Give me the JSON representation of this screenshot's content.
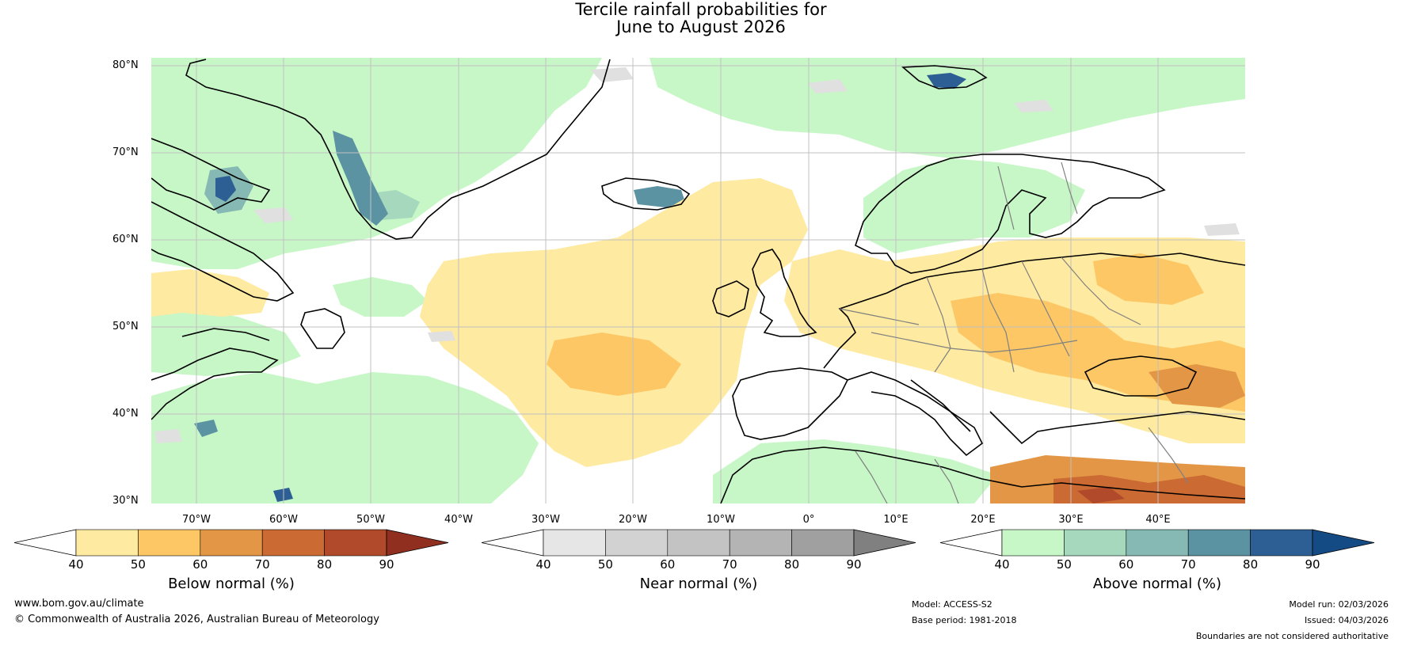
{
  "title_line1": "Tercile rainfall probabilities for",
  "title_line2": "June to August 2026",
  "lat_labels": [
    "80°N",
    "70°N",
    "60°N",
    "50°N",
    "40°N",
    "30°N"
  ],
  "lon_labels": [
    "70°W",
    "60°W",
    "50°W",
    "40°W",
    "30°W",
    "20°W",
    "10°W",
    "0°",
    "10°E",
    "20°E",
    "30°E",
    "40°E"
  ],
  "colorbars": [
    {
      "title": "Below normal (%)",
      "ticks": [
        "40",
        "50",
        "60",
        "70",
        "80",
        "90"
      ],
      "colors": [
        "#ffffff",
        "#feeaa0",
        "#fdc765",
        "#e39645",
        "#cb6a33",
        "#b04a2a",
        "#902e1f"
      ]
    },
    {
      "title": "Near normal (%)",
      "ticks": [
        "40",
        "50",
        "60",
        "70",
        "80",
        "90"
      ],
      "colors": [
        "#ffffff",
        "#e6e6e6",
        "#d2d2d2",
        "#c3c3c3",
        "#b4b4b4",
        "#a0a0a0",
        "#808080"
      ]
    },
    {
      "title": "Above normal (%)",
      "ticks": [
        "40",
        "50",
        "60",
        "70",
        "80",
        "90"
      ],
      "colors": [
        "#ffffff",
        "#c7f7c7",
        "#a5d8bd",
        "#86b9b3",
        "#5c93a3",
        "#2d5f94",
        "#154b84"
      ]
    }
  ],
  "footer": {
    "website": "www.bom.gov.au/climate",
    "copyright": "© Commonwealth of Australia 2026, Australian Bureau of Meteorology",
    "model": "Model: ACCESS-S2",
    "base_period": "Base period: 1981-2018",
    "model_run": "Model run: 02/03/2026",
    "issued": "Issued: 04/03/2026",
    "disclaimer": "Boundaries are not considered authoritative"
  },
  "colors": {
    "below_light": "#feeaa0",
    "below_mid": "#fdc765",
    "below_dark": "#e39645",
    "below_deep": "#cb6a33",
    "above_light": "#c7f7c7",
    "above_mid": "#a5d8bd",
    "above_dark": "#5c93a3",
    "above_deep": "#2d5f94",
    "near_light": "#e0e0e0",
    "coastline": "#000000",
    "border": "#808080",
    "grid": "#c0c0c0"
  }
}
